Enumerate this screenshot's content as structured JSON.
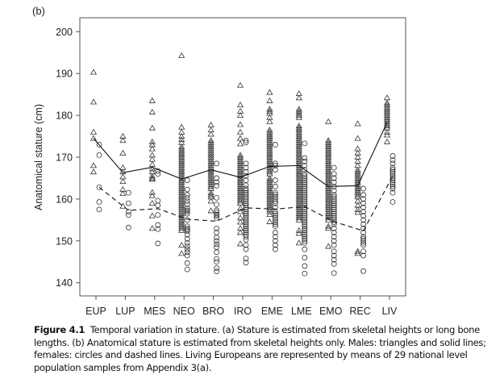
{
  "chart_data": {
    "type": "scatter",
    "panel_label": "(b)",
    "ylabel": "Anatomical stature (cm)",
    "xlabel": "",
    "ylim": [
      140,
      200
    ],
    "yticks": [
      140,
      150,
      160,
      170,
      180,
      190,
      200
    ],
    "categories": [
      "EUP",
      "LUP",
      "MES",
      "NEO",
      "BRO",
      "IRO",
      "EME",
      "LME",
      "EMO",
      "REC",
      "LIV"
    ],
    "grid": false,
    "legend": "none",
    "series": [
      {
        "group": "males",
        "marker": "triangle",
        "line": "solid",
        "means": [
          174.5,
          166.3,
          167.6,
          164.8,
          167.0,
          165.2,
          167.8,
          168.0,
          163.0,
          163.2,
          178.3
        ],
        "points": [
          [
            190.3,
            183.2,
            176,
            174.5,
            168,
            166.5
          ],
          [
            175,
            174,
            171,
            167.5,
            166.5,
            165.3,
            164.2,
            162.3,
            161.3,
            158.3
          ],
          [
            183.5,
            180.8,
            177,
            173.7,
            173,
            172,
            170.5,
            169.5,
            168.3,
            167.2,
            166.5,
            165.5,
            165,
            164.7,
            161.6,
            160.8,
            159,
            156,
            153
          ],
          [
            194.3,
            177.2,
            176,
            175,
            174.2,
            173.5,
            172.5,
            172,
            171.5,
            171,
            170.5,
            170,
            169.5,
            169,
            168.5,
            168,
            167.5,
            167,
            166.5,
            166,
            165.5,
            165,
            164.5,
            164,
            163.5,
            163,
            162.5,
            162,
            161.5,
            161,
            160.5,
            160,
            159.5,
            159,
            158.5,
            158,
            157.5,
            157,
            156.5,
            156,
            155.5,
            155,
            154.5,
            154,
            153.5,
            153,
            152.5,
            149,
            147
          ],
          [
            177.7,
            176.5,
            175.5,
            174,
            173.5,
            173,
            172.5,
            172,
            171.5,
            171,
            170.5,
            170,
            169.5,
            169,
            168.5,
            168,
            167.5,
            167,
            166.5,
            166,
            165.5,
            165,
            164.5,
            164,
            163.5,
            163,
            162.5,
            161.5,
            161,
            160.5,
            159.5,
            157.2
          ],
          [
            187.2,
            182.5,
            181,
            180,
            177.8,
            176,
            174.5,
            173.2,
            170.5,
            170,
            169.5,
            169,
            168.5,
            168,
            167.5,
            167,
            166.5,
            166,
            165.5,
            165,
            164.5,
            164,
            163.5,
            163,
            162.5,
            162,
            161.5,
            161,
            160.5,
            160,
            159.5,
            159,
            157.8,
            157,
            155.5,
            154.5,
            153,
            152,
            149.3
          ],
          [
            185.5,
            183.5,
            181.5,
            181,
            180.5,
            179.5,
            178.5,
            176.5,
            176,
            175.5,
            175,
            174.5,
            174,
            173.5,
            173,
            172.5,
            172,
            171.5,
            171,
            170.5,
            170,
            169.5,
            169,
            168.5,
            168,
            167.5,
            167,
            166.5,
            166,
            165,
            164.5,
            164,
            163.5,
            163,
            162.5,
            162,
            161.5,
            161,
            160.5,
            160,
            159.5,
            159,
            158.5,
            158,
            157.5,
            157,
            156.3,
            154.6
          ],
          [
            185.2,
            184.2,
            181.5,
            181,
            180.5,
            180,
            179.5,
            177.5,
            177,
            176.5,
            176,
            175.5,
            175,
            174.5,
            174,
            173.5,
            173,
            172.5,
            172,
            171.5,
            171,
            170.5,
            170,
            169.5,
            169,
            168.5,
            168,
            167.5,
            167,
            166.5,
            166,
            165.5,
            165,
            164.5,
            164,
            163.5,
            163,
            162.5,
            162,
            161.5,
            161,
            160.5,
            160,
            159.5,
            159,
            158.5,
            158,
            157.5,
            157,
            156.5,
            156,
            155.5,
            155,
            152.5,
            151.8,
            149.5
          ],
          [
            178.5,
            174,
            173.5,
            173,
            172.5,
            172,
            171.5,
            171,
            170.5,
            170,
            169.5,
            169,
            168.5,
            168,
            167.5,
            167,
            166.5,
            166,
            165.5,
            165,
            164.5,
            164,
            163.5,
            163,
            162.5,
            162,
            161.5,
            161,
            160.5,
            160,
            159.5,
            159,
            158.5,
            158,
            157.5,
            157,
            156.5,
            156,
            155.5,
            155,
            153.5,
            153,
            148.7
          ],
          [
            178,
            174.5,
            172,
            171,
            170,
            169,
            168,
            167,
            166.5,
            166,
            165.5,
            165,
            164.5,
            164,
            163.5,
            163,
            162.5,
            162,
            161.5,
            161,
            160.5,
            159.5,
            158.5,
            157.5,
            156.8,
            147.5,
            147
          ],
          [
            184.2,
            183,
            182.5,
            182,
            181.5,
            181,
            180.5,
            180,
            179.5,
            179,
            178.5,
            178,
            177.5,
            177,
            176,
            175.3,
            173.7
          ]
        ]
      },
      {
        "group": "females",
        "marker": "circle",
        "line": "dashed",
        "means": [
          162.8,
          157.3,
          157.7,
          155.2,
          154.7,
          157.9,
          157.6,
          158.2,
          154.6,
          152.4,
          165.5
        ],
        "points": [
          [
            173,
            170.5,
            162.8,
            159.3,
            157.5
          ],
          [
            161.5,
            159,
            157,
            156.2,
            153.2
          ],
          [
            166.7,
            166,
            159.6,
            158.5,
            156.2,
            153.8,
            152.8,
            149.4
          ],
          [
            164.5,
            162.3,
            161,
            160.3,
            159.5,
            158.8,
            157.8,
            157.3,
            157,
            156.5,
            155,
            153.5,
            153,
            152.7,
            152.3,
            151.5,
            150.5,
            149.5,
            148.7,
            148,
            147.3,
            146.5,
            144.7,
            143.2
          ],
          [
            168.5,
            165,
            164,
            163.2,
            160.3,
            158.7,
            157.3,
            156.8,
            156.3,
            156,
            155.5,
            153,
            152,
            150.8,
            150,
            149.2,
            148.5,
            147.3,
            145.7,
            145,
            143.5,
            142.7
          ],
          [
            174,
            173.5,
            168.5,
            167.5,
            166.5,
            165.5,
            164.5,
            163.3,
            162.5,
            162,
            161.5,
            161,
            160.5,
            160,
            159.5,
            159,
            158.5,
            158,
            157.5,
            157,
            156.5,
            156,
            155.5,
            155,
            154.5,
            154,
            153.5,
            153,
            152.5,
            152,
            151.5,
            151,
            150.3,
            149,
            148,
            145.8,
            144.8
          ],
          [
            173,
            168.5,
            168,
            167,
            164.5,
            163,
            161.5,
            161,
            160.5,
            160,
            159.5,
            159,
            158,
            157,
            156.5,
            156,
            155.5,
            155,
            154.5,
            154,
            153.5,
            152,
            151,
            150,
            149,
            148
          ],
          [
            173.3,
            169.8,
            169,
            168,
            167,
            166,
            165.5,
            165,
            164.5,
            164,
            163.5,
            163,
            162.5,
            162,
            161.5,
            161,
            160.5,
            160,
            159.5,
            159,
            158.5,
            158,
            157.5,
            157,
            156.5,
            156,
            155.5,
            155,
            154.5,
            154,
            153.5,
            153,
            152.5,
            152,
            151.5,
            151,
            150.5,
            150,
            149.5,
            148,
            146,
            144,
            142.2
          ],
          [
            167.5,
            166,
            165,
            164,
            163,
            162,
            161,
            160.5,
            160,
            159.5,
            159,
            158.5,
            158,
            157.5,
            157,
            156.5,
            156,
            155.5,
            155,
            154.5,
            154,
            153,
            152,
            151,
            150,
            149,
            147.5,
            146.5,
            145.5,
            144.5,
            142.3
          ],
          [
            162.5,
            161,
            160,
            159,
            158,
            157,
            156,
            155,
            154,
            153,
            152,
            151,
            150.5,
            150,
            149.5,
            149,
            147.5,
            146.5,
            142.8
          ],
          [
            170.3,
            169.3,
            168.5,
            167.5,
            167,
            166.5,
            166,
            165.5,
            165,
            164.5,
            164,
            163.5,
            163,
            162.5,
            161.5,
            159.3
          ]
        ]
      }
    ]
  },
  "caption": {
    "label": "Figure 4.1",
    "text": "Temporal variation in stature. (a) Stature is estimated from skeletal heights or long bone lengths. (b) Anatomical stature is estimated from skeletal heights only. Males: triangles and solid lines; females: circles and dashed lines. Living Europeans are represented by means of 29 national level population samples from Appendix 3(a)."
  }
}
